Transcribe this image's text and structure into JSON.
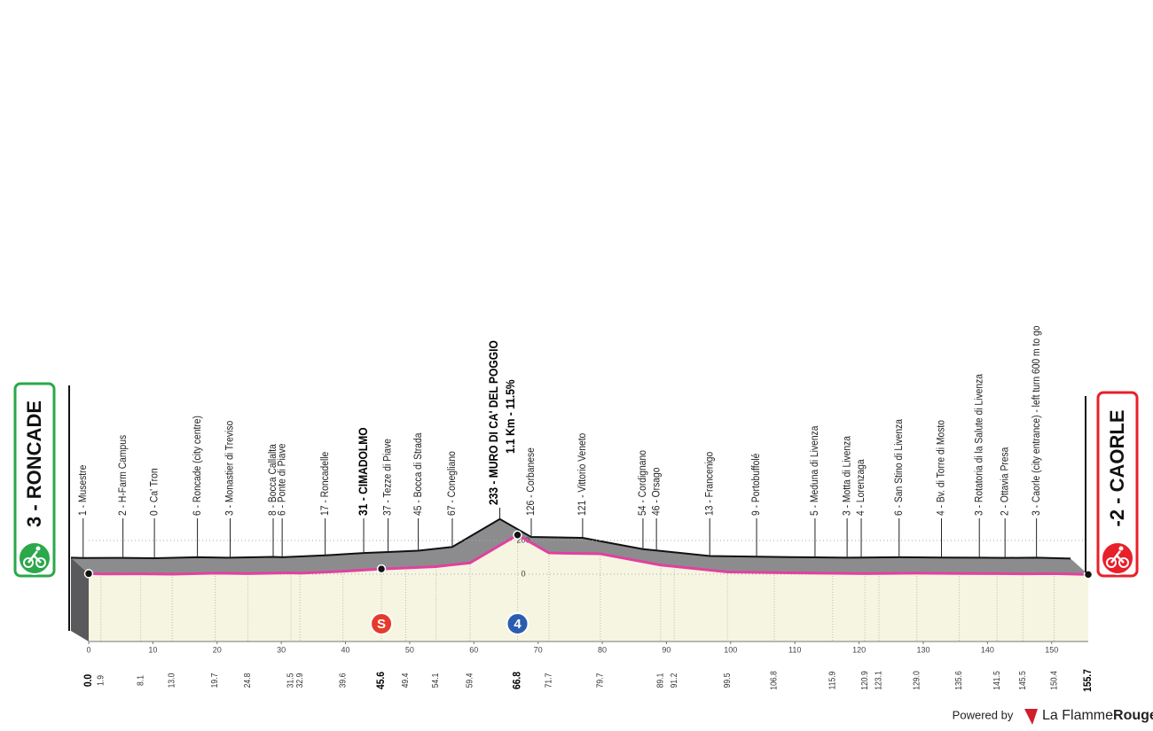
{
  "chart_data": {
    "type": "area",
    "x": [
      0.0,
      1.9,
      8.1,
      13.0,
      19.7,
      24.8,
      31.5,
      32.9,
      39.6,
      45.6,
      49.4,
      54.1,
      59.4,
      66.8,
      71.7,
      79.7,
      89.1,
      91.2,
      99.5,
      106.8,
      115.9,
      120.9,
      123.1,
      129.0,
      135.6,
      141.5,
      145.5,
      150.4,
      155.7
    ],
    "x_labels": [
      "0.0",
      "1.9",
      "8.1",
      "13.0",
      "19.7",
      "24.8",
      "31.5",
      "32.9",
      "39.6",
      "45.6",
      "49.4",
      "54.1",
      "59.4",
      "66.8",
      "71.7",
      "79.7",
      "89.1",
      "91.2",
      "99.5",
      "106.8",
      "115.9",
      "120.9",
      "123.1",
      "129.0",
      "135.6",
      "141.5",
      "145.5",
      "150.4",
      "155.7"
    ],
    "values": [
      3,
      1,
      2,
      0,
      6,
      3,
      8,
      6,
      17,
      31,
      37,
      45,
      67,
      233,
      126,
      121,
      54,
      46,
      13,
      9,
      5,
      3,
      4,
      6,
      4,
      3,
      2,
      3,
      -2
    ],
    "value_labels": [
      "3 - RONCADE",
      "1 - Musestre",
      "2 - H-Farm Campus",
      "0 - Ca' Tron",
      "6 - Roncade (city centre)",
      "3 - Monastier di Treviso",
      "8 - Bocca Callalta",
      "6 - Ponte di Piave",
      "17 - Roncadelle",
      "31 - CIMADOLMO",
      "37 - Tezze di Piave",
      "45 - Bocca di Strada",
      "67 - Conegliano",
      "233 - MURO DI CA' DEL POGGIO",
      "126 - Corbanese",
      "121 - Vittorio Veneto",
      "54 - Cordignano",
      "46 - Orsago",
      "13 - Francenigo",
      "9 - Portobuffolé",
      "5 - Meduna di Livenza",
      "3 - Motta di Livenza",
      "4 - Lorenzaga",
      "6 - San Stino di Livenza",
      "4 - Bv. di Torre di Mosto",
      "3 - Rotatoria di la Salute di Livenza",
      "2 - Ottavia Presa",
      "3 - Caorle (city entrance) - left turn 600 m to go",
      "-2 - CAORLE"
    ],
    "annotation": "1.1 Km - 11.5%",
    "icons": {
      "sprint": "S",
      "kom": "4"
    },
    "xlim": [
      0,
      155.7
    ],
    "xticks": [
      0,
      10,
      20,
      30,
      40,
      50,
      60,
      70,
      80,
      90,
      100,
      110,
      120,
      130,
      140,
      150
    ],
    "ylim": [
      -400,
      1000
    ],
    "yticks": [
      0,
      200
    ],
    "line_color": "#e2409f",
    "fill_color": "#f5f5e1",
    "terrain_color": "#8c8c8e",
    "start_color": "#2aa84a",
    "finish_color": "#e8202a"
  },
  "footer": {
    "powered": "Powered by",
    "brand": "La Flamme",
    "brand_bold": "Rouge"
  }
}
